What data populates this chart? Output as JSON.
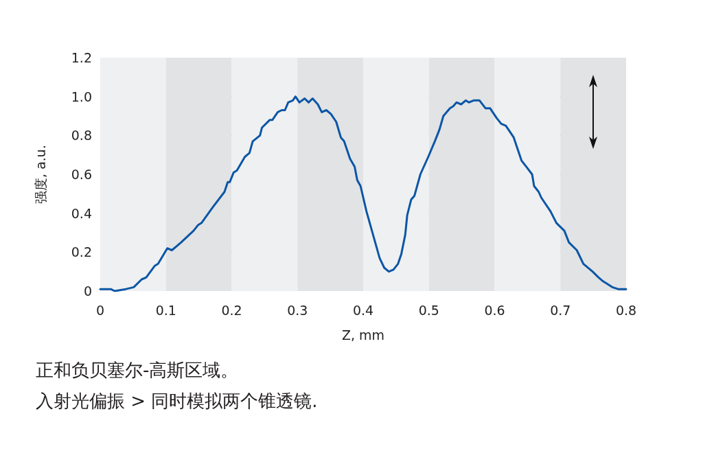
{
  "chart_data": {
    "type": "line",
    "xlabel": "Z, mm",
    "ylabel": "强度, a.u.",
    "annotations": [
      "正和负贝塞尔-高斯区域。",
      "入射光偏振 > 同时模拟两个锥透镜."
    ],
    "x": [
      0,
      0.016,
      0.022,
      0.039,
      0.051,
      0.063,
      0.07,
      0.083,
      0.088,
      0.102,
      0.109,
      0.123,
      0.142,
      0.149,
      0.154,
      0.171,
      0.189,
      0.194,
      0.197,
      0.203,
      0.208,
      0.22,
      0.227,
      0.232,
      0.243,
      0.246,
      0.258,
      0.262,
      0.27,
      0.276,
      0.281,
      0.286,
      0.293,
      0.297,
      0.303,
      0.311,
      0.317,
      0.323,
      0.331,
      0.337,
      0.344,
      0.351,
      0.359,
      0.366,
      0.371,
      0.38,
      0.387,
      0.391,
      0.396,
      0.405,
      0.415,
      0.425,
      0.432,
      0.439,
      0.446,
      0.453,
      0.458,
      0.464,
      0.467,
      0.473,
      0.478,
      0.487,
      0.499,
      0.509,
      0.516,
      0.522,
      0.532,
      0.537,
      0.542,
      0.549,
      0.556,
      0.561,
      0.568,
      0.577,
      0.586,
      0.593,
      0.603,
      0.61,
      0.617,
      0.629,
      0.641,
      0.648,
      0.657,
      0.66,
      0.667,
      0.671,
      0.685,
      0.694,
      0.706,
      0.713,
      0.725,
      0.735,
      0.749,
      0.758,
      0.765,
      0.77,
      0.779,
      0.788,
      0.798,
      0.8
    ],
    "values": [
      0.01,
      0.01,
      0,
      0.01,
      0.02,
      0.06,
      0.07,
      0.13,
      0.14,
      0.22,
      0.21,
      0.25,
      0.31,
      0.34,
      0.35,
      0.43,
      0.51,
      0.56,
      0.56,
      0.61,
      0.62,
      0.69,
      0.71,
      0.77,
      0.8,
      0.84,
      0.88,
      0.88,
      0.92,
      0.93,
      0.93,
      0.97,
      0.98,
      1.0,
      0.97,
      0.99,
      0.97,
      0.99,
      0.96,
      0.92,
      0.93,
      0.91,
      0.87,
      0.79,
      0.77,
      0.68,
      0.64,
      0.57,
      0.54,
      0.41,
      0.29,
      0.17,
      0.12,
      0.1,
      0.11,
      0.14,
      0.19,
      0.29,
      0.39,
      0.47,
      0.49,
      0.6,
      0.69,
      0.77,
      0.83,
      0.9,
      0.94,
      0.95,
      0.97,
      0.96,
      0.98,
      0.97,
      0.98,
      0.98,
      0.94,
      0.94,
      0.89,
      0.86,
      0.85,
      0.79,
      0.67,
      0.64,
      0.6,
      0.54,
      0.51,
      0.48,
      0.41,
      0.35,
      0.31,
      0.25,
      0.21,
      0.14,
      0.1,
      0.07,
      0.05,
      0.04,
      0.02,
      0.01,
      0.01,
      0.01
    ],
    "color": "#0b56a6",
    "xlim": [
      0,
      0.8
    ],
    "xticks": [
      0,
      0.1,
      0.2,
      0.3,
      0.4,
      0.5,
      0.6,
      0.7,
      0.8
    ],
    "ylim": [
      0,
      1.2
    ],
    "yticks": [
      0,
      0.2,
      0.4,
      0.6,
      0.8,
      {
        "value": 1,
        "label": "1.0"
      },
      1.2
    ],
    "grid": "y",
    "marker": "none",
    "line_style": "solid",
    "bands": [
      {
        "axis": "x",
        "from": 0,
        "to": 0.1,
        "color": "#eff0f1"
      },
      {
        "axis": "x",
        "from": 0.1,
        "to": 0.2,
        "color": "#e2e3e5"
      },
      {
        "axis": "x",
        "from": 0.2,
        "to": 0.3,
        "color": "#eff0f1"
      },
      {
        "axis": "x",
        "from": 0.3,
        "to": 0.4,
        "color": "#e2e3e5"
      },
      {
        "axis": "x",
        "from": 0.4,
        "to": 0.5,
        "color": "#eff0f1"
      },
      {
        "axis": "x",
        "from": 0.5,
        "to": 0.6,
        "color": "#e2e3e5"
      },
      {
        "axis": "x",
        "from": 0.6,
        "to": 0.7,
        "color": "#eff0f1"
      },
      {
        "axis": "x",
        "from": 0.7,
        "to": 0.8,
        "color": "#e2e3e5"
      }
    ]
  }
}
